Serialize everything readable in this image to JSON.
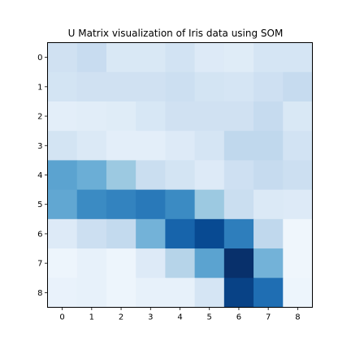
{
  "chart_data": {
    "type": "heatmap",
    "title": "U Matrix visualization of Iris data using SOM",
    "xlabel": "",
    "ylabel": "",
    "x_ticks": [
      "0",
      "1",
      "2",
      "3",
      "4",
      "5",
      "6",
      "7",
      "8"
    ],
    "y_ticks": [
      "0",
      "1",
      "2",
      "3",
      "4",
      "5",
      "6",
      "7",
      "8"
    ],
    "colormap": "Blues",
    "grid": false,
    "legend": "none",
    "matrix": [
      [
        0.2,
        0.24,
        0.15,
        0.15,
        0.19,
        0.13,
        0.12,
        0.17,
        0.17
      ],
      [
        0.18,
        0.2,
        0.2,
        0.2,
        0.22,
        0.18,
        0.17,
        0.21,
        0.25
      ],
      [
        0.1,
        0.11,
        0.12,
        0.16,
        0.2,
        0.2,
        0.2,
        0.25,
        0.15
      ],
      [
        0.18,
        0.14,
        0.1,
        0.1,
        0.13,
        0.17,
        0.27,
        0.27,
        0.19
      ],
      [
        0.55,
        0.5,
        0.38,
        0.23,
        0.18,
        0.13,
        0.21,
        0.25,
        0.22
      ],
      [
        0.53,
        0.65,
        0.68,
        0.72,
        0.65,
        0.38,
        0.23,
        0.14,
        0.13
      ],
      [
        0.13,
        0.22,
        0.26,
        0.48,
        0.8,
        0.9,
        0.7,
        0.27,
        0.04
      ],
      [
        0.05,
        0.08,
        0.05,
        0.13,
        0.3,
        0.55,
        1.0,
        0.48,
        0.04
      ],
      [
        0.07,
        0.08,
        0.05,
        0.08,
        0.08,
        0.17,
        0.93,
        0.76,
        0.05
      ]
    ]
  }
}
